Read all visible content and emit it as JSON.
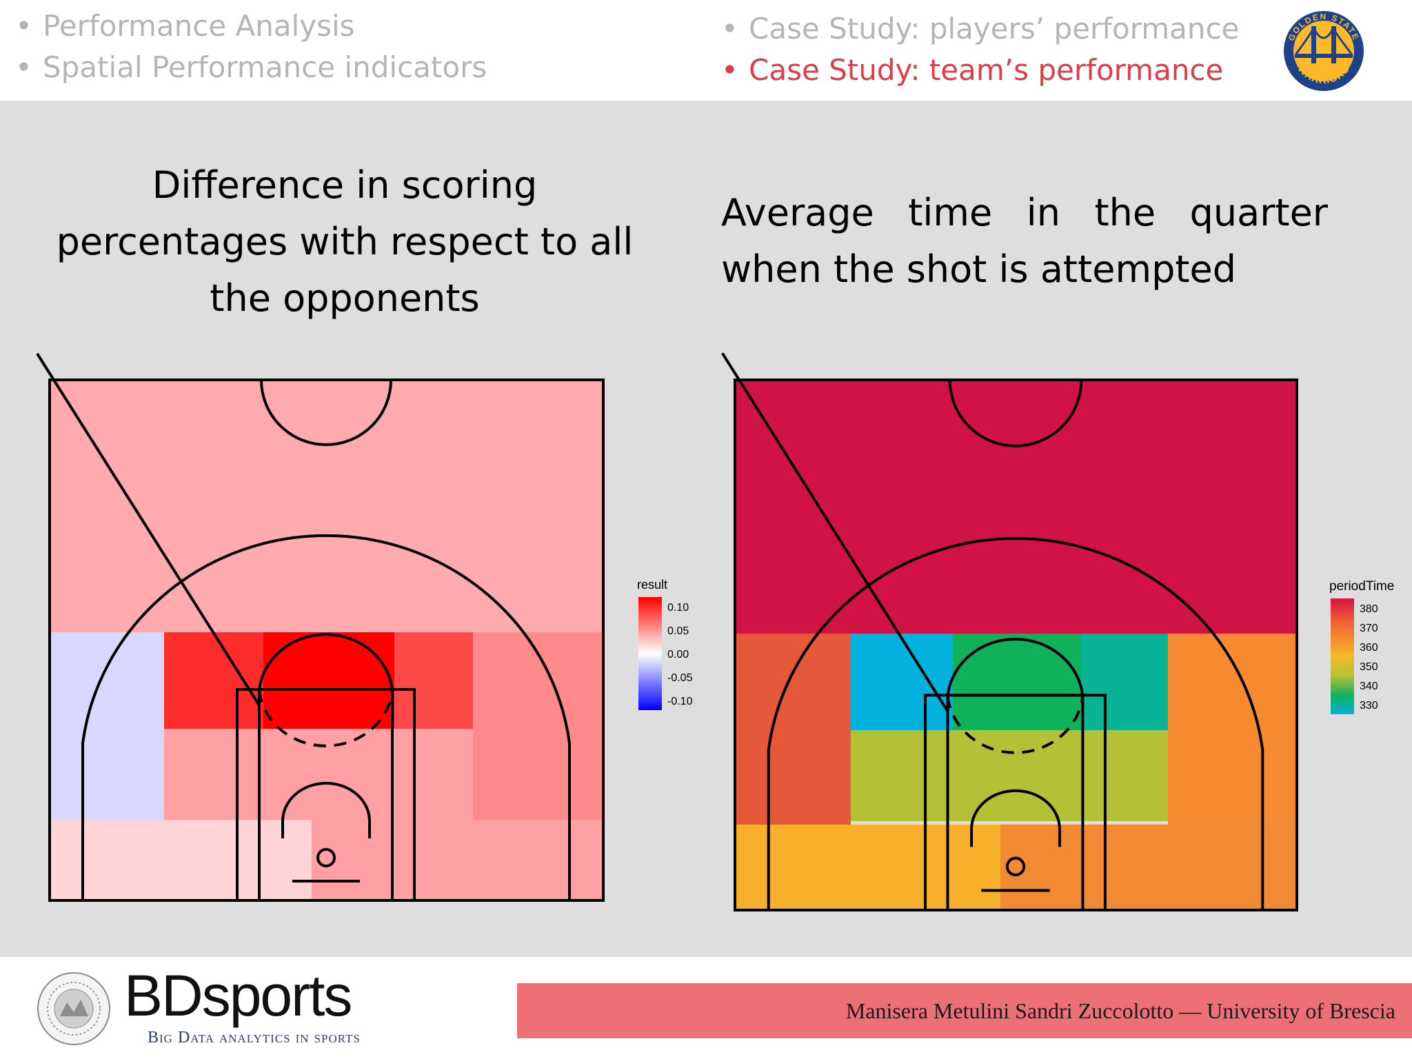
{
  "nav": {
    "left": [
      "Performance Analysis",
      "Spatial Performance indicators"
    ],
    "right": [
      "Case Study: players’ performance",
      "Case Study: team’s performance"
    ],
    "active": "Case Study: team’s performance"
  },
  "logo": {
    "name": "warriors-logo",
    "text_top": "GOLDEN STATE",
    "text_bottom": "WARRIORS",
    "colors": {
      "blue": "#1d428a",
      "gold": "#fdb927"
    }
  },
  "panels": {
    "left": {
      "title": "Difference in scoring percentages with respect to all the opponents"
    },
    "right": {
      "title": "Average time in the quarter when the shot is attempted"
    }
  },
  "chart_data": [
    {
      "type": "heatmap",
      "legend": {
        "title": "result",
        "ticks": [
          "0.10",
          "0.05",
          "0.00",
          "-0.05",
          "-0.10"
        ],
        "colors": [
          "#ff0000",
          "#ffffff",
          "#0000ff"
        ],
        "placement": "right"
      },
      "zones": [
        {
          "zone": "backcourt / deep",
          "color": "#ffaaaf"
        },
        {
          "zone": "left corner three",
          "color": "#d8d8ff"
        },
        {
          "zone": "left mid-range",
          "color": "#ff2c2c"
        },
        {
          "zone": "restricted area",
          "color": "#ff0000"
        },
        {
          "zone": "right mid-range",
          "color": "#ff4949"
        },
        {
          "zone": "right wing three",
          "color": "#ff8a8e"
        },
        {
          "zone": "paint",
          "color": "#ffa0a4"
        },
        {
          "zone": "left baseline",
          "color": "#ffd4d6"
        },
        {
          "zone": "right baseline",
          "color": "#ffa0a4"
        }
      ]
    },
    {
      "type": "heatmap",
      "legend": {
        "title": "periodTime",
        "ticks": [
          "380",
          "370",
          "360",
          "350",
          "340",
          "330"
        ],
        "colors": [
          "#d31347",
          "#ec5438",
          "#f4882e",
          "#f5b82b",
          "#b6c233",
          "#14b25a",
          "#02b2de"
        ],
        "placement": "right"
      },
      "zones": [
        {
          "zone": "backcourt / deep",
          "color": "#d01344"
        },
        {
          "zone": "left wing",
          "color": "#e6583a"
        },
        {
          "zone": "left mid-range",
          "color": "#02b2de"
        },
        {
          "zone": "restricted area",
          "color": "#10b15b"
        },
        {
          "zone": "right mid-range",
          "color": "#09b396"
        },
        {
          "zone": "right wing",
          "color": "#f58a30"
        },
        {
          "zone": "paint",
          "color": "#b4c035"
        },
        {
          "zone": "left baseline",
          "color": "#f8b02c"
        },
        {
          "zone": "right baseline",
          "color": "#f28a33"
        }
      ]
    }
  ],
  "footer": {
    "credit": "Manisera Metulini Sandri Zuccolotto — University of Brescia",
    "brand": "BDsports",
    "tagline": "Big Data analytics in sports"
  }
}
